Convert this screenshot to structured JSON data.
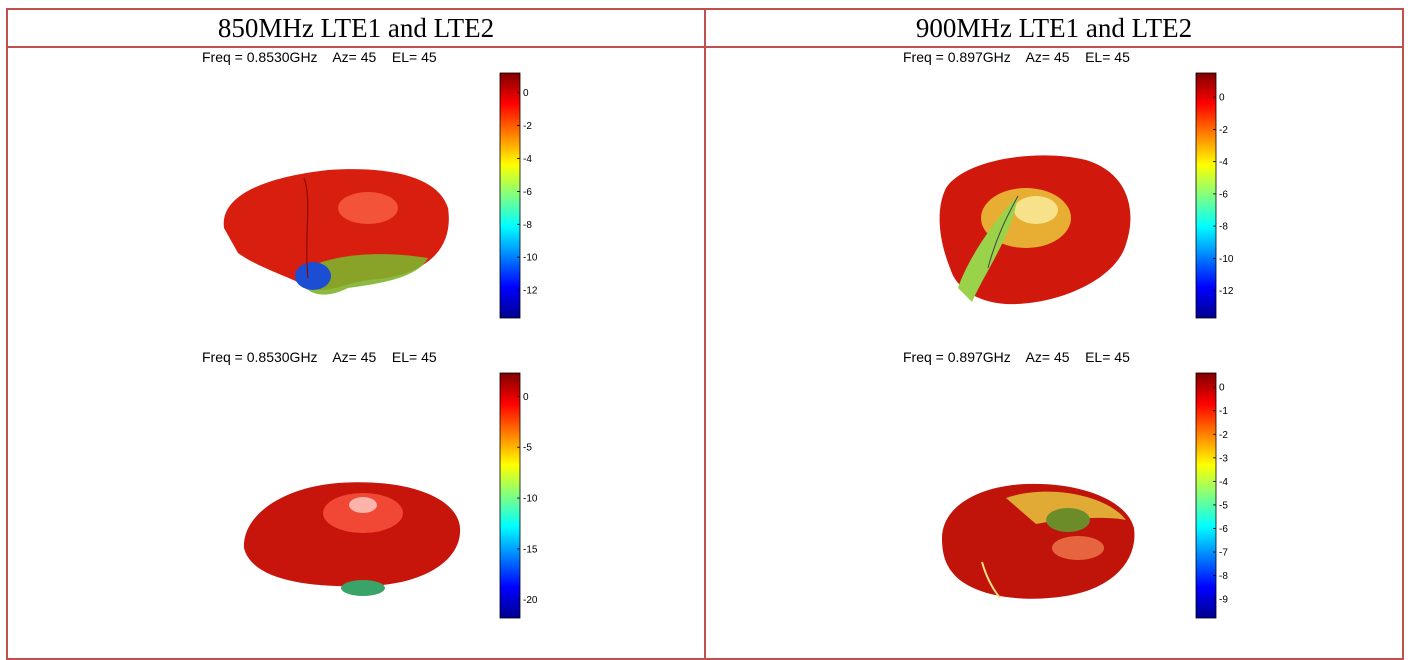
{
  "headers": [
    "850MHz LTE1 and LTE2",
    "900MHz LTE1 and LTE2"
  ],
  "chart_data": [
    {
      "type": "3d-radiation-pattern",
      "title": "Freq = 0.8530GHz    Az= 45    EL= 45",
      "colorbar": {
        "ticks": [
          0,
          -2,
          -4,
          -6,
          -8,
          -10,
          -12
        ],
        "range": [
          -13.7,
          1.2
        ]
      }
    },
    {
      "type": "3d-radiation-pattern",
      "title": "Freq = 0.897GHz    Az= 45    EL= 45",
      "colorbar": {
        "ticks": [
          0,
          -2,
          -4,
          -6,
          -8,
          -10,
          -12
        ],
        "range": [
          -13.7,
          1.5
        ]
      }
    },
    {
      "type": "3d-radiation-pattern",
      "title": "Freq = 0.8530GHz    Az= 45    EL= 45",
      "colorbar": {
        "ticks": [
          0,
          -5,
          -10,
          -15,
          -20
        ],
        "range": [
          -21.8,
          2.3
        ]
      }
    },
    {
      "type": "3d-radiation-pattern",
      "title": "Freq = 0.897GHz    Az= 45    EL= 45",
      "colorbar": {
        "ticks": [
          0,
          -1,
          -2,
          -3,
          -4,
          -5,
          -6,
          -7,
          -8,
          -9
        ],
        "range": [
          -9.8,
          0.6
        ]
      }
    }
  ],
  "colors": {
    "border": "#c0504d"
  }
}
